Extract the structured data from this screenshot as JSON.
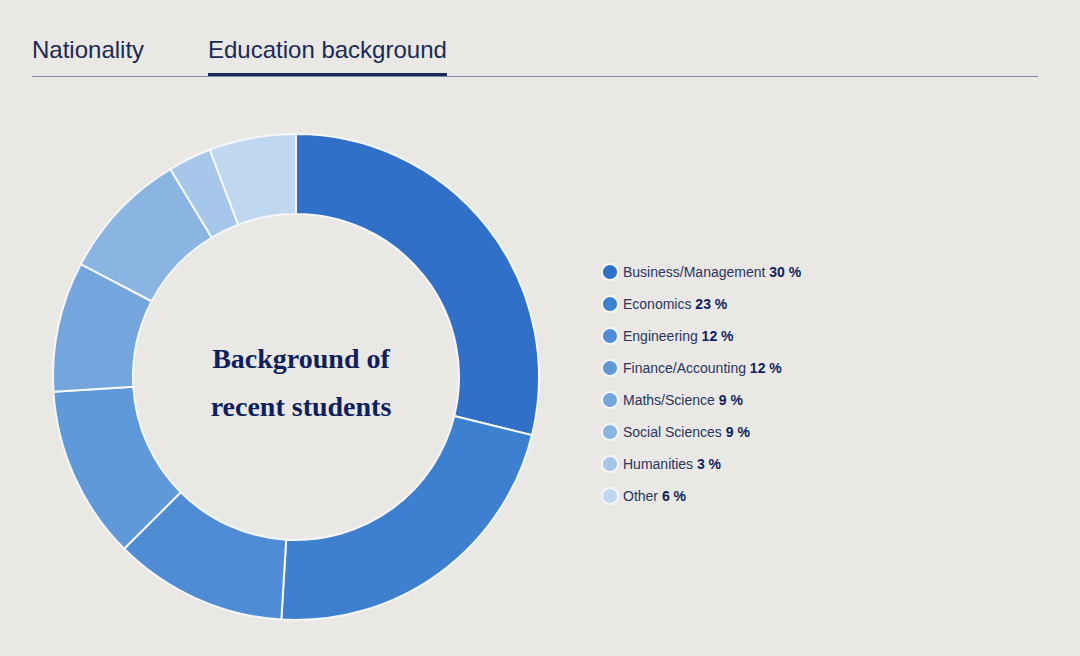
{
  "tabs": [
    "Nationality",
    "Education background"
  ],
  "chart_data": {
    "type": "pie",
    "title": "Background of\nrecent students",
    "categories": [
      "Business/Management",
      "Economics",
      "Engineering",
      "Finance/Accounting",
      "Maths/Science",
      "Social Sciences",
      "Humanities",
      "Other"
    ],
    "values": [
      30,
      23,
      12,
      12,
      9,
      9,
      3,
      6
    ],
    "value_labels": [
      "30 %",
      "23 %",
      "12 %",
      "12 %",
      "9 %",
      "9 %",
      "3 %",
      "6 %"
    ],
    "colors": [
      "#3070c8",
      "#3e80d0",
      "#4f8cd5",
      "#6099d9",
      "#74a6dd",
      "#8ab4e2",
      "#a6c7ea",
      "#c0d7f0"
    ],
    "legend": "right"
  }
}
